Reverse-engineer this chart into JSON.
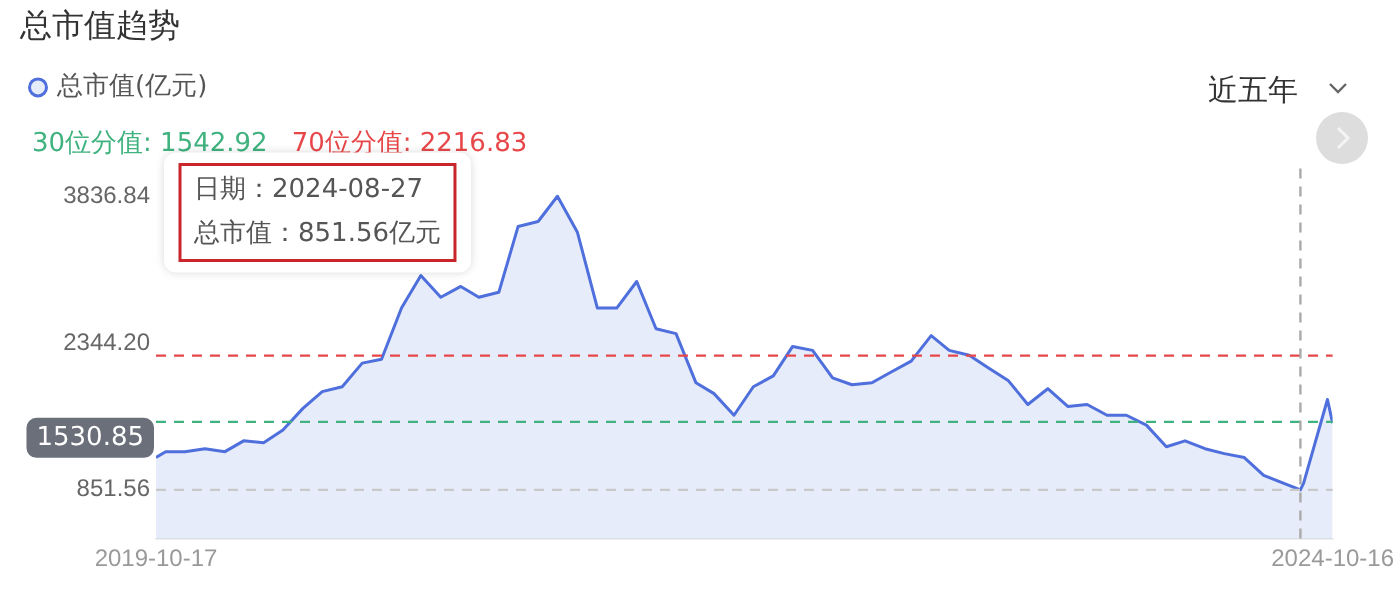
{
  "chart_data": {
    "type": "area",
    "title": "总市值趋势",
    "legend": "top left",
    "grid": false,
    "marker": "none",
    "x": [
      "2019-10-17",
      "2019-11",
      "2019-12",
      "2020-01",
      "2020-02",
      "2020-03",
      "2020-04",
      "2020-05",
      "2020-06",
      "2020-07",
      "2020-08",
      "2020-09",
      "2020-10",
      "2020-11",
      "2020-12",
      "2021-01",
      "2021-02",
      "2021-03",
      "2021-04",
      "2021-05",
      "2021-06",
      "2021-07",
      "2021-08",
      "2021-09",
      "2021-10",
      "2021-11",
      "2021-12",
      "2022-01",
      "2022-02",
      "2022-03",
      "2022-04",
      "2022-05",
      "2022-06",
      "2022-07",
      "2022-08",
      "2022-09",
      "2022-10",
      "2022-11",
      "2022-12",
      "2023-01",
      "2023-02",
      "2023-03",
      "2023-04",
      "2023-05",
      "2023-06",
      "2023-07",
      "2023-08",
      "2023-09",
      "2023-10",
      "2023-11",
      "2023-12",
      "2024-01",
      "2024-02",
      "2024-03",
      "2024-04",
      "2024-05",
      "2024-06",
      "2024-07",
      "2024-08-27",
      "2024-09",
      "2024-10-08",
      "2024-10-16"
    ],
    "series": [
      {
        "name": "总市值(亿元)",
        "color": "#4e6fdc",
        "values": [
          1180,
          1240,
          1240,
          1270,
          1240,
          1350,
          1330,
          1460,
          1680,
          1850,
          1900,
          2140,
          2180,
          2700,
          3030,
          2810,
          2920,
          2810,
          2860,
          3530,
          3580,
          3836.84,
          3470,
          2700,
          2700,
          2970,
          2490,
          2440,
          1940,
          1830,
          1610,
          1900,
          2010,
          2310,
          2270,
          1990,
          1920,
          1940,
          2050,
          2160,
          2420,
          2270,
          2220,
          2090,
          1960,
          1720,
          1880,
          1700,
          1720,
          1610,
          1610,
          1510,
          1290,
          1350,
          1270,
          1220,
          1180,
          1000,
          851.56,
          920,
          1770,
          1530.85
        ]
      }
    ],
    "xlim": [
      "2019-10-17",
      "2024-10-16"
    ],
    "xticks": [
      "2019-10-17",
      "2024-10-16"
    ],
    "ylim": [
      350,
      4120
    ],
    "yticks": [
      851.56,
      {
        "value": 2344.2,
        "label": "2344.20"
      },
      3836.84
    ],
    "ref_lines": [
      {
        "axis": "y",
        "value": 1542.92,
        "label": "30位分值: 1542.92",
        "color": "#3fb27f",
        "line_style": "dashed"
      },
      {
        "axis": "y",
        "value": 2216.83,
        "label": "70位分值: 2216.83",
        "color": "#e8474a",
        "line_style": "dashed"
      },
      {
        "axis": "y",
        "value": 851.56,
        "color": "#c8c8c8",
        "line_style": "dashed"
      },
      {
        "axis": "x",
        "value": "2024-08-27",
        "color": "#aaaaaa",
        "line_style": "dashed"
      }
    ],
    "annotations": [
      "日期：2024-08-27",
      "总市值：851.56亿元",
      "1530.85",
      "近五年"
    ]
  }
}
